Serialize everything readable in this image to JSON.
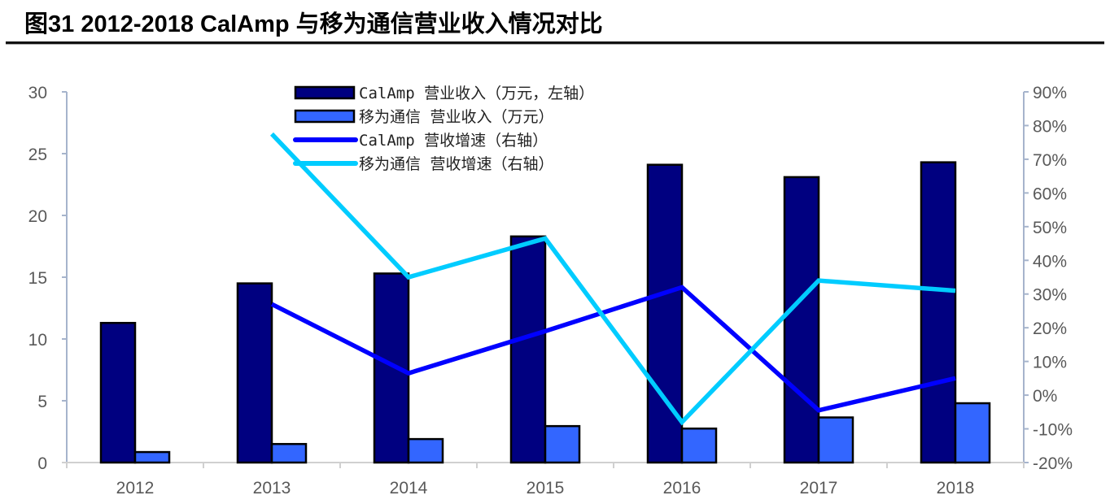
{
  "header": {
    "title": "图31 2012-2018 CalAmp 与移为通信营业收入情况对比"
  },
  "colors": {
    "calamp_bar": "#000080",
    "queclink_bar": "#3366FF",
    "calamp_line": "#0000FF",
    "queclink_line": "#00CCFF",
    "axis": "#A6B4CC",
    "tick_text": "#595959"
  },
  "chart_data": {
    "type": "bar",
    "title": "2012-2018 CalAmp 与移为通信营业收入情况对比",
    "categories": [
      "2012",
      "2013",
      "2014",
      "2015",
      "2016",
      "2017",
      "2018"
    ],
    "series": [
      {
        "name": "CalAmp 营业收入（万元，左轴）",
        "type": "bar",
        "axis": "left",
        "values": [
          11.3,
          14.5,
          15.3,
          18.3,
          24.1,
          23.1,
          24.3
        ]
      },
      {
        "name": "移为通信 营业收入（万元）",
        "type": "bar",
        "axis": "left",
        "values": [
          0.85,
          1.5,
          1.9,
          2.95,
          2.75,
          3.65,
          4.8
        ]
      },
      {
        "name": "CalAmp 营收增速（右轴）",
        "type": "line",
        "axis": "right",
        "values": [
          null,
          27,
          6.5,
          19,
          32,
          -4.5,
          5
        ]
      },
      {
        "name": "移为通信 营收增速（右轴）",
        "type": "line",
        "axis": "right",
        "values": [
          null,
          77.5,
          35,
          46.5,
          -8,
          34,
          31
        ]
      }
    ],
    "xlabel": "",
    "ylabel_left": "",
    "ylabel_right": "",
    "ylim_left": [
      0,
      30
    ],
    "yticks_left": [
      "0",
      "5",
      "10",
      "15",
      "20",
      "25",
      "30"
    ],
    "ylim_right": [
      -20,
      90
    ],
    "yticks_right": [
      "-20%",
      "-10%",
      "0%",
      "10%",
      "20%",
      "30%",
      "40%",
      "50%",
      "60%",
      "70%",
      "80%",
      "90%"
    ],
    "grid": false,
    "legend_position": "top-center"
  },
  "legend": {
    "items": [
      "CalAmp 营业收入（万元，左轴）",
      "移为通信 营业收入（万元）",
      "CalAmp 营收增速（右轴）",
      "移为通信 营收增速（右轴）"
    ]
  }
}
